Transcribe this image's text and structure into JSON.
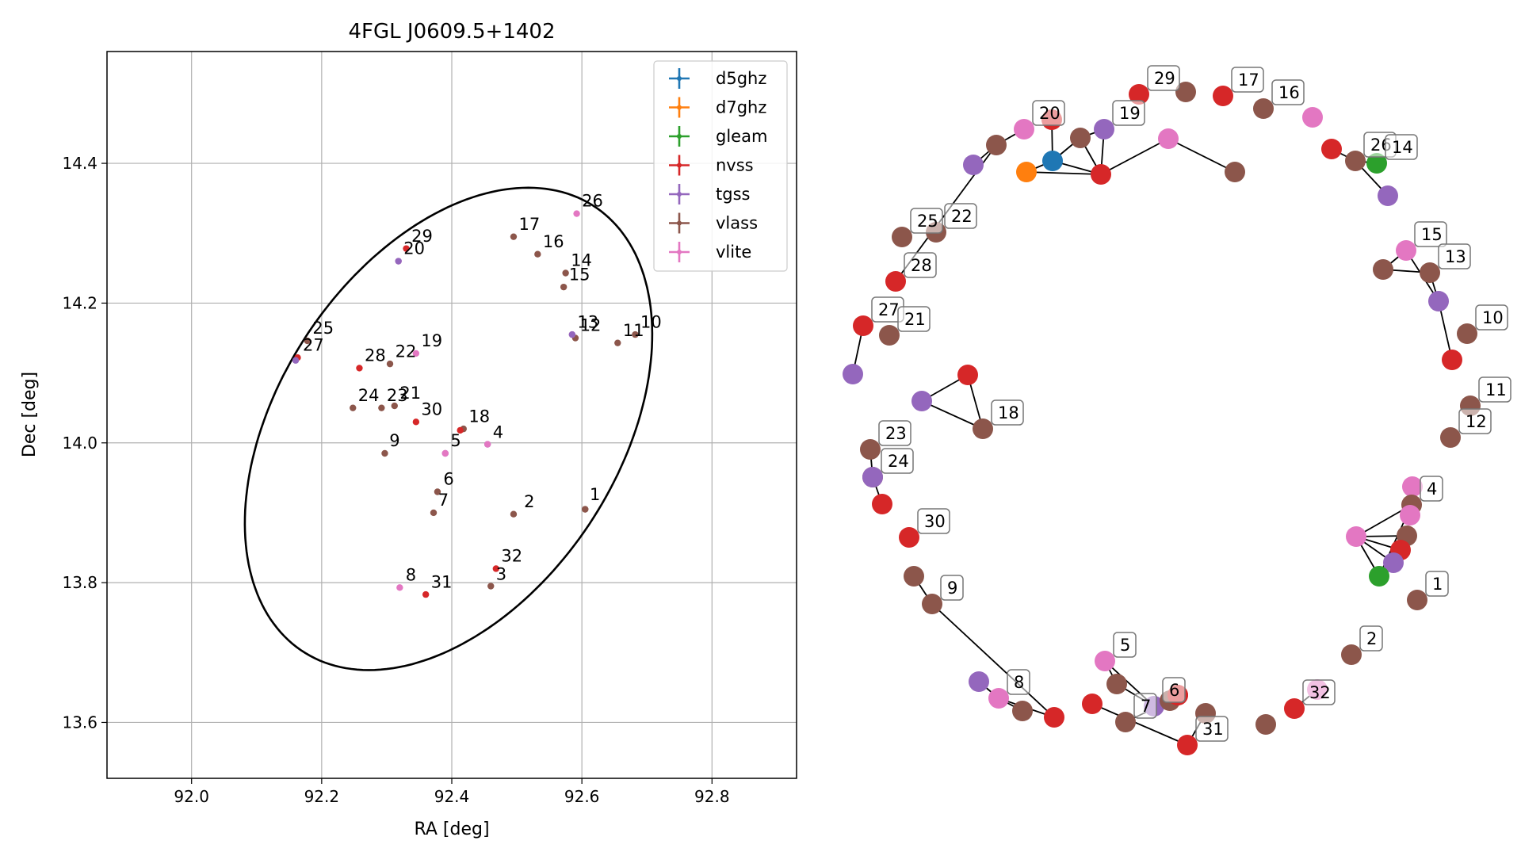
{
  "colors": {
    "d5ghz": "#1f77b4",
    "d7ghz": "#ff7f0e",
    "gleam": "#2ca02c",
    "nvss": "#d62728",
    "tgss": "#9467bd",
    "vlass": "#8c564b",
    "vlite": "#e377c2"
  },
  "chart_data": [
    {
      "type": "scatter",
      "title": "4FGL J0609.5+1402",
      "xlabel": "RA [deg]",
      "ylabel": "Dec [deg]",
      "xlim": [
        91.87,
        92.93
      ],
      "ylim": [
        13.52,
        14.56
      ],
      "xticks": [
        92.0,
        92.2,
        92.4,
        92.6,
        92.8
      ],
      "yticks": [
        13.6,
        13.8,
        14.0,
        14.2,
        14.4
      ],
      "xtick_labels": [
        "92.0",
        "92.2",
        "92.4",
        "92.6",
        "92.8"
      ],
      "ytick_labels": [
        "13.6",
        "13.8",
        "14.0",
        "14.2",
        "14.4"
      ],
      "grid": true,
      "legend_position": "top-right",
      "legend": [
        "d5ghz",
        "d7ghz",
        "gleam",
        "nvss",
        "tgss",
        "vlass",
        "vlite"
      ],
      "ellipse": {
        "center": [
          92.395,
          14.02
        ],
        "semi_major": 0.39,
        "semi_minor": 0.255,
        "angle_deg": 52
      },
      "points": [
        {
          "ra": 92.605,
          "dec": 13.905,
          "survey": "vlass"
        },
        {
          "ra": 92.605,
          "dec": 13.905,
          "survey": "vlass"
        },
        {
          "ra": 92.495,
          "dec": 13.898,
          "survey": "vlass"
        },
        {
          "ra": 92.46,
          "dec": 13.795,
          "survey": "vlass"
        },
        {
          "ra": 92.455,
          "dec": 13.998,
          "survey": "tgss"
        },
        {
          "ra": 92.455,
          "dec": 13.998,
          "survey": "vlite"
        },
        {
          "ra": 92.39,
          "dec": 13.985,
          "survey": "tgss"
        },
        {
          "ra": 92.39,
          "dec": 13.985,
          "survey": "vlite"
        },
        {
          "ra": 92.378,
          "dec": 13.93,
          "survey": "vlass"
        },
        {
          "ra": 92.372,
          "dec": 13.9,
          "survey": "vlass"
        },
        {
          "ra": 92.32,
          "dec": 13.793,
          "survey": "vlite"
        },
        {
          "ra": 92.297,
          "dec": 13.985,
          "survey": "vlass"
        },
        {
          "ra": 92.36,
          "dec": 13.783,
          "survey": "nvss"
        },
        {
          "ra": 92.468,
          "dec": 13.82,
          "survey": "nvss"
        },
        {
          "ra": 92.345,
          "dec": 14.03,
          "survey": "nvss"
        },
        {
          "ra": 92.418,
          "dec": 14.02,
          "survey": "vlass"
        },
        {
          "ra": 92.413,
          "dec": 14.018,
          "survey": "nvss"
        },
        {
          "ra": 92.682,
          "dec": 14.155,
          "survey": "vlass"
        },
        {
          "ra": 92.655,
          "dec": 14.143,
          "survey": "vlass"
        },
        {
          "ra": 92.59,
          "dec": 14.15,
          "survey": "vlass"
        },
        {
          "ra": 92.585,
          "dec": 14.155,
          "survey": "vlite"
        },
        {
          "ra": 92.585,
          "dec": 14.155,
          "survey": "tgss"
        },
        {
          "ra": 92.575,
          "dec": 14.243,
          "survey": "vlass"
        },
        {
          "ra": 92.572,
          "dec": 14.223,
          "survey": "vlass"
        },
        {
          "ra": 92.532,
          "dec": 14.27,
          "survey": "vlass"
        },
        {
          "ra": 92.495,
          "dec": 14.295,
          "survey": "vlass"
        },
        {
          "ra": 92.592,
          "dec": 14.328,
          "survey": "vlite"
        },
        {
          "ra": 92.33,
          "dec": 14.278,
          "survey": "nvss"
        },
        {
          "ra": 92.318,
          "dec": 14.26,
          "survey": "vlite"
        },
        {
          "ra": 92.318,
          "dec": 14.26,
          "survey": "tgss"
        },
        {
          "ra": 92.345,
          "dec": 14.128,
          "survey": "vlite"
        },
        {
          "ra": 92.305,
          "dec": 14.113,
          "survey": "vlass"
        },
        {
          "ra": 92.258,
          "dec": 14.107,
          "survey": "nvss"
        },
        {
          "ra": 92.178,
          "dec": 14.146,
          "survey": "vlass"
        },
        {
          "ra": 92.163,
          "dec": 14.122,
          "survey": "nvss"
        },
        {
          "ra": 92.16,
          "dec": 14.118,
          "survey": "tgss"
        },
        {
          "ra": 92.248,
          "dec": 14.05,
          "survey": "vlass"
        },
        {
          "ra": 92.292,
          "dec": 14.05,
          "survey": "vlass"
        },
        {
          "ra": 92.312,
          "dec": 14.053,
          "survey": "vlass"
        }
      ],
      "labels": [
        {
          "text": "1",
          "ra": 92.612,
          "dec": 13.918
        },
        {
          "text": "2",
          "ra": 92.511,
          "dec": 13.908
        },
        {
          "text": "3",
          "ra": 92.468,
          "dec": 13.804
        },
        {
          "text": "4",
          "ra": 92.463,
          "dec": 14.007
        },
        {
          "text": "5",
          "ra": 92.398,
          "dec": 13.995
        },
        {
          "text": "6",
          "ra": 92.387,
          "dec": 13.94
        },
        {
          "text": "7",
          "ra": 92.379,
          "dec": 13.91
        },
        {
          "text": "8",
          "ra": 92.329,
          "dec": 13.803
        },
        {
          "text": "9",
          "ra": 92.304,
          "dec": 13.995
        },
        {
          "text": "10",
          "ra": 92.69,
          "dec": 14.165
        },
        {
          "text": "11",
          "ra": 92.663,
          "dec": 14.153
        },
        {
          "text": "12",
          "ra": 92.597,
          "dec": 14.16
        },
        {
          "text": "13",
          "ra": 92.593,
          "dec": 14.165
        },
        {
          "text": "14",
          "ra": 92.583,
          "dec": 14.253
        },
        {
          "text": "15",
          "ra": 92.58,
          "dec": 14.233
        },
        {
          "text": "16",
          "ra": 92.54,
          "dec": 14.28
        },
        {
          "text": "17",
          "ra": 92.503,
          "dec": 14.305
        },
        {
          "text": "18",
          "ra": 92.426,
          "dec": 14.03
        },
        {
          "text": "19",
          "ra": 92.353,
          "dec": 14.138
        },
        {
          "text": "20",
          "ra": 92.326,
          "dec": 14.27
        },
        {
          "text": "21",
          "ra": 92.32,
          "dec": 14.063
        },
        {
          "text": "22",
          "ra": 92.313,
          "dec": 14.123
        },
        {
          "text": "23",
          "ra": 92.3,
          "dec": 14.06
        },
        {
          "text": "24",
          "ra": 92.256,
          "dec": 14.06
        },
        {
          "text": "25",
          "ra": 92.186,
          "dec": 14.156
        },
        {
          "text": "26",
          "ra": 92.6,
          "dec": 14.338
        },
        {
          "text": "27",
          "ra": 92.171,
          "dec": 14.132
        },
        {
          "text": "28",
          "ra": 92.266,
          "dec": 14.117
        },
        {
          "text": "29",
          "ra": 92.338,
          "dec": 14.288
        },
        {
          "text": "30",
          "ra": 92.353,
          "dec": 14.04
        },
        {
          "text": "31",
          "ra": 92.368,
          "dec": 13.793
        },
        {
          "text": "32",
          "ra": 92.476,
          "dec": 13.83
        }
      ]
    },
    {
      "type": "network",
      "nodes": [
        {
          "id": "a1",
          "survey": "vlass",
          "label": "1"
        },
        {
          "id": "a2",
          "survey": "vlass",
          "label": "2"
        },
        {
          "id": "a32",
          "survey": "nvss",
          "label": "32"
        },
        {
          "id": "a32b",
          "survey": "vlite",
          "label": ""
        },
        {
          "id": "b1",
          "survey": "vlass",
          "label": ""
        },
        {
          "id": "a31",
          "survey": "nvss",
          "label": "31"
        },
        {
          "id": "b2",
          "survey": "vlass",
          "label": ""
        },
        {
          "id": "b3",
          "survey": "nvss",
          "label": ""
        },
        {
          "id": "a5",
          "survey": "vlite",
          "label": "5"
        },
        {
          "id": "b4",
          "survey": "vlass",
          "label": ""
        },
        {
          "id": "a7",
          "survey": "vlass",
          "label": "7"
        },
        {
          "id": "a6",
          "survey": "tgss",
          "label": "6"
        },
        {
          "id": "b5",
          "survey": "vlass",
          "label": ""
        },
        {
          "id": "b6",
          "survey": "nvss",
          "label": ""
        },
        {
          "id": "b7",
          "survey": "nvss",
          "label": ""
        },
        {
          "id": "b8",
          "survey": "vlass",
          "label": ""
        },
        {
          "id": "a8",
          "survey": "vlite",
          "label": "8"
        },
        {
          "id": "b9",
          "survey": "tgss",
          "label": ""
        },
        {
          "id": "b10",
          "survey": "nvss",
          "label": ""
        },
        {
          "id": "a9",
          "survey": "vlass",
          "label": "9"
        },
        {
          "id": "b11",
          "survey": "vlass",
          "label": ""
        },
        {
          "id": "a30",
          "survey": "nvss",
          "label": "30"
        },
        {
          "id": "b12",
          "survey": "nvss",
          "label": ""
        },
        {
          "id": "a24",
          "survey": "vlass",
          "label": "24"
        },
        {
          "id": "a23",
          "survey": "vlass",
          "label": "23"
        },
        {
          "id": "b13",
          "survey": "tgss",
          "label": ""
        },
        {
          "id": "a18",
          "survey": "vlass",
          "label": "18"
        },
        {
          "id": "b14",
          "survey": "tgss",
          "label": ""
        },
        {
          "id": "b15",
          "survey": "nvss",
          "label": ""
        },
        {
          "id": "b16",
          "survey": "tgss",
          "label": ""
        },
        {
          "id": "a27",
          "survey": "nvss",
          "label": "27"
        },
        {
          "id": "a21",
          "survey": "vlass",
          "label": "21"
        },
        {
          "id": "a28",
          "survey": "nvss",
          "label": "28"
        },
        {
          "id": "a25",
          "survey": "vlass",
          "label": "25"
        },
        {
          "id": "a22",
          "survey": "vlass",
          "label": "22"
        },
        {
          "id": "b17",
          "survey": "tgss",
          "label": ""
        },
        {
          "id": "b18",
          "survey": "vlass",
          "label": ""
        },
        {
          "id": "a20",
          "survey": "vlite",
          "label": "20"
        },
        {
          "id": "b19",
          "survey": "nvss",
          "label": ""
        },
        {
          "id": "b20",
          "survey": "d7ghz",
          "label": ""
        },
        {
          "id": "b21",
          "survey": "d5ghz",
          "label": ""
        },
        {
          "id": "b22",
          "survey": "vlass",
          "label": ""
        },
        {
          "id": "a19",
          "survey": "tgss",
          "label": "19"
        },
        {
          "id": "b23",
          "survey": "nvss",
          "label": ""
        },
        {
          "id": "b24",
          "survey": "vlite",
          "label": ""
        },
        {
          "id": "b25",
          "survey": "vlass",
          "label": ""
        },
        {
          "id": "a29",
          "survey": "nvss",
          "label": "29"
        },
        {
          "id": "b26",
          "survey": "vlass",
          "label": ""
        },
        {
          "id": "a17",
          "survey": "nvss",
          "label": "17"
        },
        {
          "id": "a16",
          "survey": "vlass",
          "label": "16"
        },
        {
          "id": "b27",
          "survey": "vlite",
          "label": ""
        },
        {
          "id": "b28",
          "survey": "nvss",
          "label": ""
        },
        {
          "id": "a26",
          "survey": "vlass",
          "label": "26"
        },
        {
          "id": "a14",
          "survey": "gleam",
          "label": "14"
        },
        {
          "id": "b29",
          "survey": "tgss",
          "label": ""
        },
        {
          "id": "a15",
          "survey": "vlite",
          "label": "15"
        },
        {
          "id": "b30",
          "survey": "vlass",
          "label": ""
        },
        {
          "id": "a13",
          "survey": "vlass",
          "label": "13"
        },
        {
          "id": "b31",
          "survey": "tgss",
          "label": ""
        },
        {
          "id": "b32",
          "survey": "nvss",
          "label": ""
        },
        {
          "id": "a10",
          "survey": "vlass",
          "label": "10"
        },
        {
          "id": "a11",
          "survey": "vlass",
          "label": "11"
        },
        {
          "id": "a12",
          "survey": "vlass",
          "label": "12"
        },
        {
          "id": "b33",
          "survey": "vlite",
          "label": ""
        },
        {
          "id": "a4",
          "survey": "vlass",
          "label": "4"
        },
        {
          "id": "b34",
          "survey": "vlite",
          "label": ""
        },
        {
          "id": "b35",
          "survey": "vlite",
          "label": ""
        },
        {
          "id": "b36",
          "survey": "vlass",
          "label": ""
        },
        {
          "id": "b37",
          "survey": "nvss",
          "label": ""
        },
        {
          "id": "b38",
          "survey": "tgss",
          "label": ""
        },
        {
          "id": "b39",
          "survey": "gleam",
          "label": ""
        }
      ],
      "edges": [
        [
          "a32",
          "a32b"
        ],
        [
          "a31",
          "b2"
        ],
        [
          "a31",
          "b3"
        ],
        [
          "a5",
          "b4"
        ],
        [
          "a5",
          "a6"
        ],
        [
          "b4",
          "a6"
        ],
        [
          "a7",
          "b5"
        ],
        [
          "b5",
          "a6"
        ],
        [
          "b6",
          "a6"
        ],
        [
          "b8",
          "a8"
        ],
        [
          "a8",
          "b9"
        ],
        [
          "b10",
          "a8"
        ],
        [
          "a9",
          "b11"
        ],
        [
          "a9",
          "b10"
        ],
        [
          "a24",
          "a23"
        ],
        [
          "a24",
          "b13"
        ],
        [
          "b12",
          "b13"
        ],
        [
          "b14",
          "b15"
        ],
        [
          "b14",
          "a18"
        ],
        [
          "b15",
          "a18"
        ],
        [
          "a27",
          "b16"
        ],
        [
          "a28",
          "b18"
        ],
        [
          "b17",
          "b18"
        ],
        [
          "a20",
          "b18"
        ],
        [
          "b19",
          "b21"
        ],
        [
          "b20",
          "b21"
        ],
        [
          "b21",
          "b23"
        ],
        [
          "b20",
          "b23"
        ],
        [
          "b22",
          "b23"
        ],
        [
          "b22",
          "a19"
        ],
        [
          "a19",
          "b23"
        ],
        [
          "b24",
          "b23"
        ],
        [
          "b24",
          "b25"
        ],
        [
          "b22",
          "b21"
        ],
        [
          "a26",
          "b28"
        ],
        [
          "a26",
          "a14"
        ],
        [
          "a26",
          "b29"
        ],
        [
          "a15",
          "b30"
        ],
        [
          "b30",
          "a13"
        ],
        [
          "a13",
          "b31"
        ],
        [
          "b31",
          "b32"
        ],
        [
          "a15",
          "b31"
        ],
        [
          "b34",
          "b37"
        ],
        [
          "b34",
          "b38"
        ],
        [
          "b34",
          "b39"
        ],
        [
          "b34",
          "b36"
        ],
        [
          "b34",
          "a4"
        ],
        [
          "b37",
          "b38"
        ],
        [
          "b35",
          "a4"
        ],
        [
          "b36",
          "b38"
        ],
        [
          "a4",
          "b39"
        ]
      ]
    }
  ]
}
